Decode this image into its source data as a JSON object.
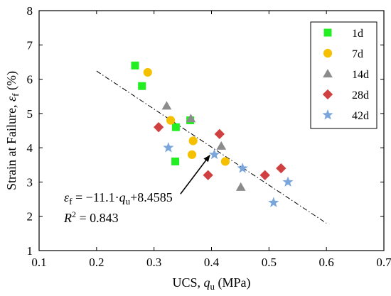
{
  "chart_data": {
    "type": "scatter",
    "xlabel_prefix": "UCS, ",
    "xlabel_symbol": "q",
    "xlabel_sub": "u",
    "xlabel_unit": " (MPa)",
    "ylabel_prefix": "Strain at Failure, ",
    "ylabel_symbol": "ε",
    "ylabel_sub": "f",
    "ylabel_unit": " (%)",
    "xlim": [
      0.1,
      0.7
    ],
    "ylim": [
      1,
      8
    ],
    "x_ticks": [
      0.1,
      0.2,
      0.3,
      0.4,
      0.5,
      0.6,
      0.7
    ],
    "y_ticks": [
      1,
      2,
      3,
      4,
      5,
      6,
      7,
      8
    ],
    "x_tick_labels": [
      "0.1",
      "0.2",
      "0.3",
      "0.4",
      "0.5",
      "0.6",
      "0.7"
    ],
    "y_tick_labels": [
      "1",
      "2",
      "3",
      "4",
      "5",
      "6",
      "7",
      "8"
    ],
    "legend_position": "top-right",
    "series": [
      {
        "name": "1d",
        "marker": "square",
        "color": "#22ee22",
        "points": [
          [
            0.267,
            6.4
          ],
          [
            0.279,
            5.8
          ],
          [
            0.338,
            4.6
          ],
          [
            0.363,
            4.8
          ],
          [
            0.337,
            3.6
          ]
        ]
      },
      {
        "name": "7d",
        "marker": "circle",
        "color": "#f5c000",
        "points": [
          [
            0.289,
            6.2
          ],
          [
            0.329,
            4.8
          ],
          [
            0.368,
            4.2
          ],
          [
            0.366,
            3.8
          ],
          [
            0.424,
            3.6
          ]
        ]
      },
      {
        "name": "14d",
        "marker": "triangle",
        "color": "#8c8c8c",
        "points": [
          [
            0.322,
            5.22
          ],
          [
            0.364,
            4.85
          ],
          [
            0.417,
            4.05
          ],
          [
            0.451,
            2.85
          ]
        ]
      },
      {
        "name": "28d",
        "marker": "diamond",
        "color": "#d04040",
        "points": [
          [
            0.308,
            4.6
          ],
          [
            0.414,
            4.4
          ],
          [
            0.394,
            3.2
          ],
          [
            0.493,
            3.2
          ],
          [
            0.521,
            3.4
          ]
        ]
      },
      {
        "name": "42d",
        "marker": "star",
        "color": "#7aa6dc",
        "points": [
          [
            0.325,
            4.0
          ],
          [
            0.405,
            3.8
          ],
          [
            0.454,
            3.4
          ],
          [
            0.533,
            3.0
          ],
          [
            0.508,
            2.4
          ]
        ]
      }
    ],
    "fit_line": {
      "x_range": [
        0.2,
        0.6
      ],
      "slope": -11.1,
      "intercept": 8.4585,
      "style": "dash-dot"
    },
    "equation": {
      "lhs_symbol": "ε",
      "lhs_sub": "f",
      "rhs_prefix": " = −11.1·",
      "rhs_symbol": "q",
      "rhs_sub": "u",
      "rhs_suffix": "+8.4585"
    },
    "r_squared": {
      "symbol": "R",
      "sup": "2",
      "rest": " = 0.843"
    },
    "arrow": {
      "from": [
        0.346,
        2.65
      ],
      "to": [
        0.397,
        3.78
      ]
    }
  }
}
